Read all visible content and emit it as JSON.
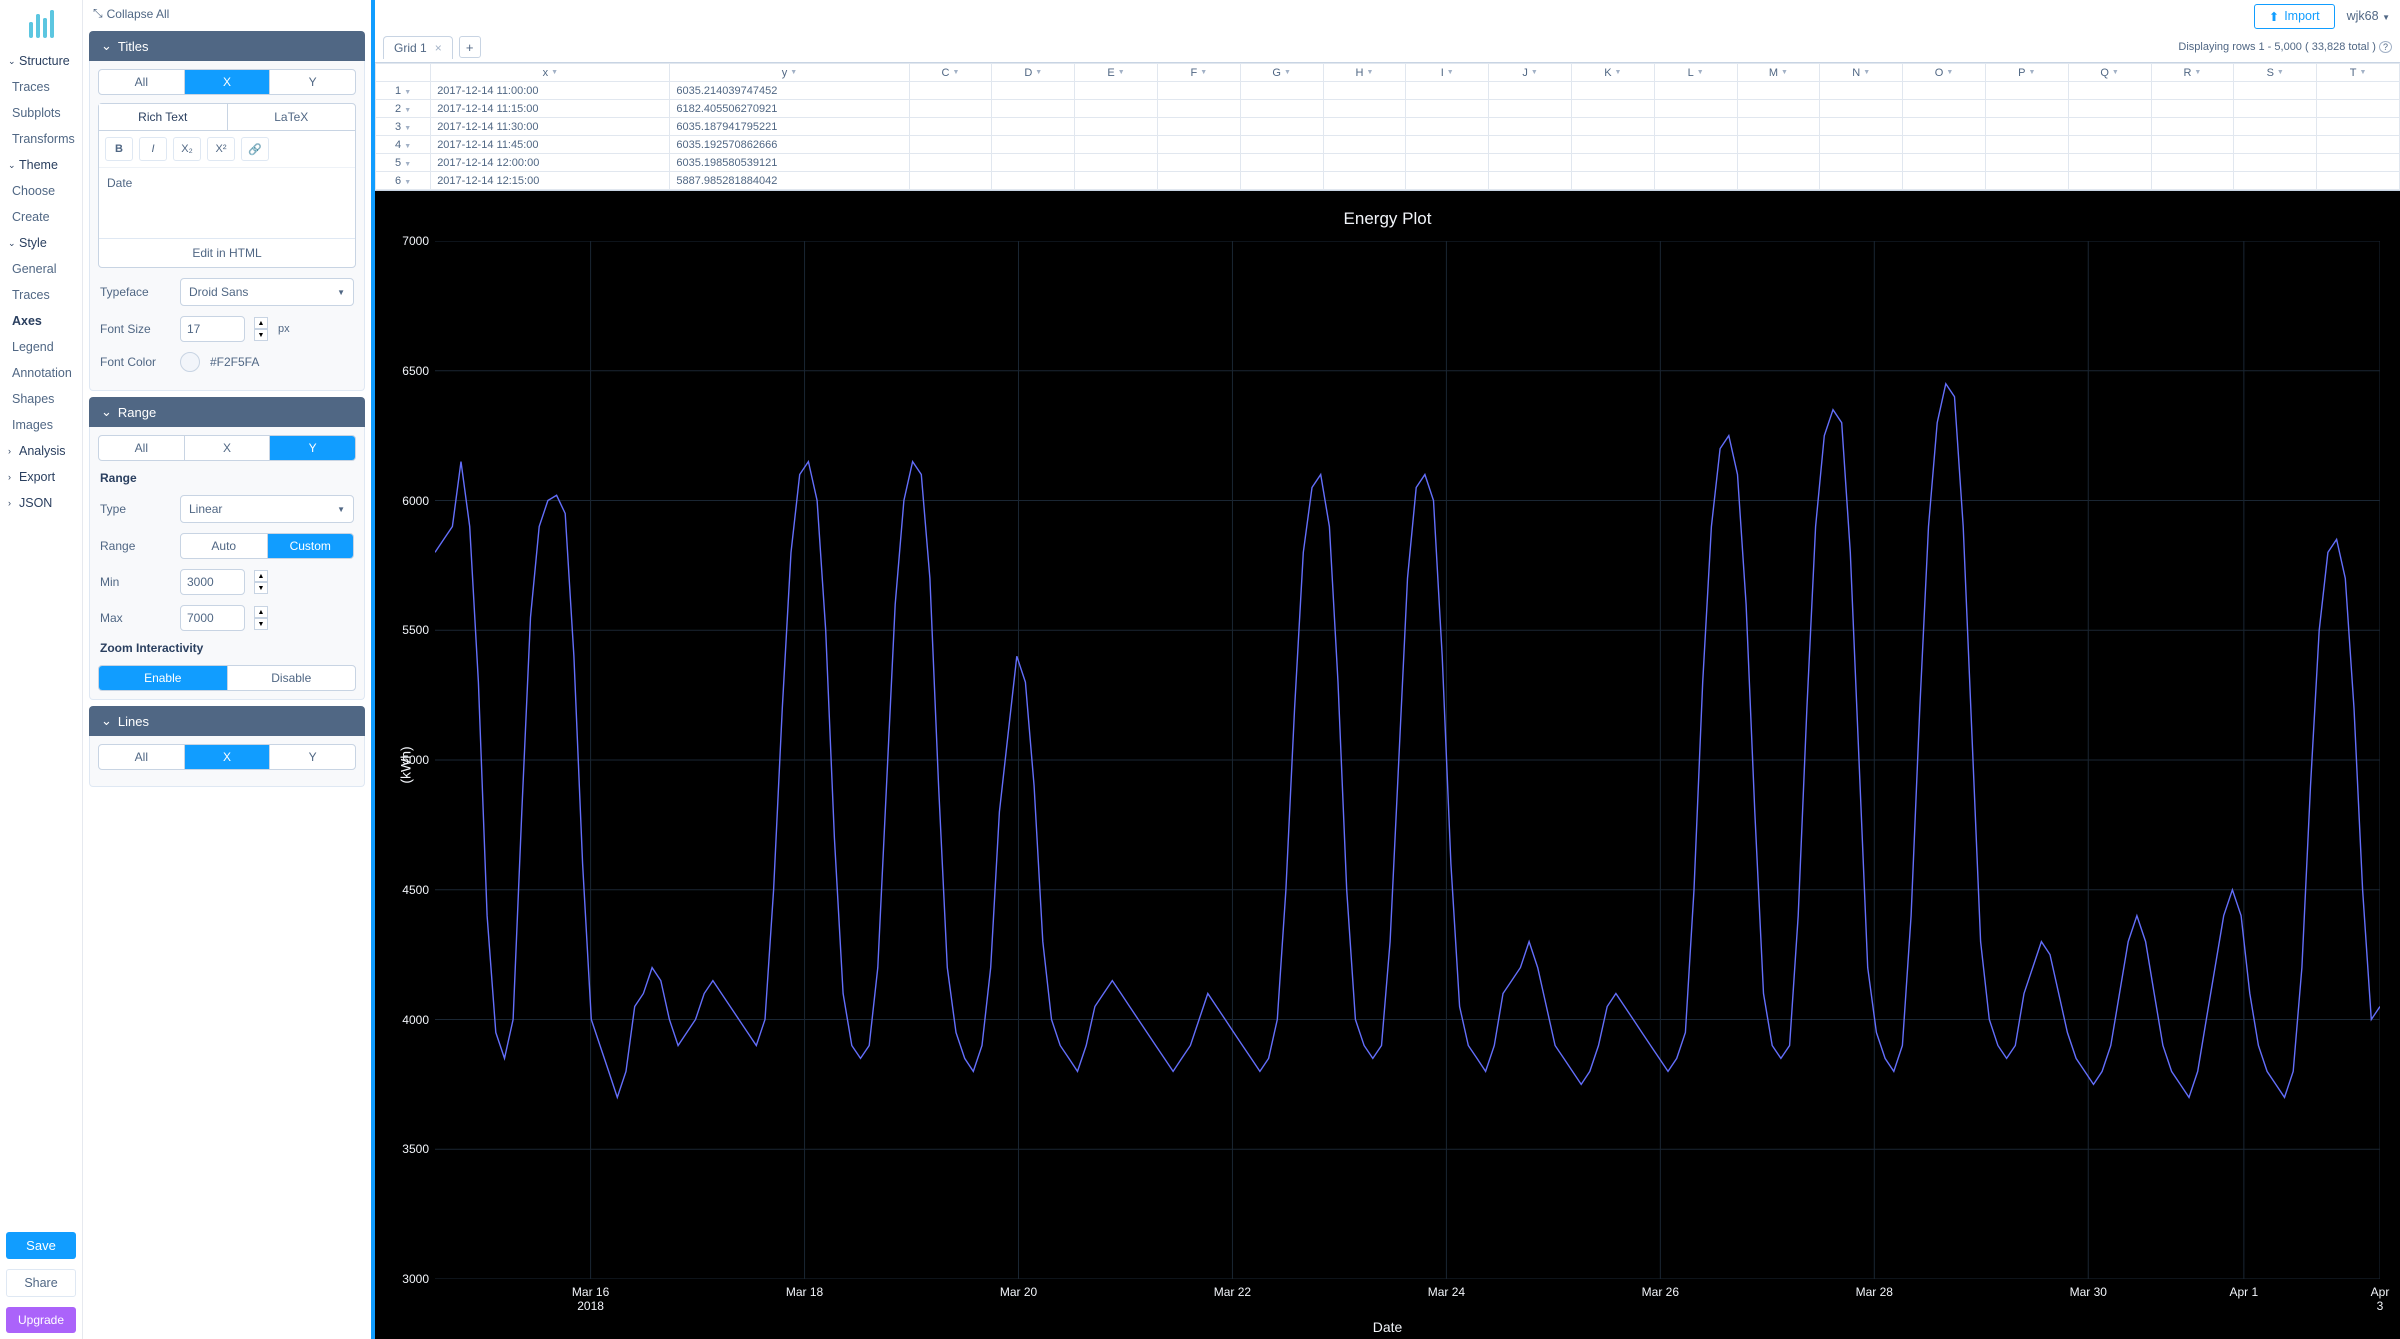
{
  "sidebar": {
    "structure": {
      "head": "Structure",
      "items": [
        "Traces",
        "Subplots",
        "Transforms"
      ]
    },
    "theme": {
      "head": "Theme",
      "items": [
        "Choose",
        "Create"
      ]
    },
    "style": {
      "head": "Style",
      "items": [
        "General",
        "Traces",
        "Axes",
        "Legend",
        "Annotation",
        "Shapes",
        "Images"
      ],
      "active_index": 2
    },
    "analysis": {
      "head": "Analysis"
    },
    "export": {
      "head": "Export"
    },
    "json": {
      "head": "JSON"
    },
    "save": "Save",
    "share": "Share",
    "upgrade": "Upgrade"
  },
  "props": {
    "collapse_all": "Collapse All",
    "titles": {
      "head": "Titles",
      "seg": [
        "All",
        "X",
        "Y"
      ],
      "seg_on": 1,
      "rt_tabs": [
        "Rich Text",
        "LaTeX"
      ],
      "rt_on": 0,
      "toolbar": {
        "bold": "B",
        "italic": "I",
        "sub": "X₂",
        "sup": "X²",
        "link": "🔗"
      },
      "value": "Date",
      "edit_html": "Edit in HTML",
      "typeface_label": "Typeface",
      "typeface_value": "Droid Sans",
      "fontsize_label": "Font Size",
      "fontsize_value": "17",
      "fontsize_unit": "px",
      "fontcolor_label": "Font Color",
      "fontcolor_value": "#F2F5FA"
    },
    "range": {
      "head": "Range",
      "seg": [
        "All",
        "X",
        "Y"
      ],
      "seg_on": 2,
      "range_label": "Range",
      "type_label": "Type",
      "type_value": "Linear",
      "mode_label": "Range",
      "mode_opts": [
        "Auto",
        "Custom"
      ],
      "mode_on": 1,
      "min_label": "Min",
      "min_value": "3000",
      "max_label": "Max",
      "max_value": "7000",
      "zoom_label": "Zoom Interactivity",
      "zoom_opts": [
        "Enable",
        "Disable"
      ],
      "zoom_on": 0
    },
    "lines": {
      "head": "Lines",
      "seg": [
        "All",
        "X",
        "Y"
      ],
      "seg_on": 1
    }
  },
  "topbar": {
    "import": "Import",
    "user": "wjk68"
  },
  "grid": {
    "tab_name": "Grid 1",
    "rows_info": "Displaying rows 1 - 5,000 ( 33,828 total )",
    "columns_letters": [
      "C",
      "D",
      "E",
      "F",
      "G",
      "H",
      "I",
      "J",
      "K",
      "L",
      "M",
      "N",
      "O",
      "P",
      "Q",
      "R",
      "S",
      "T"
    ],
    "xy_headers": [
      "x",
      "y"
    ],
    "rows": [
      [
        "1",
        "2017-12-14 11:00:00",
        "6035.214039747452"
      ],
      [
        "2",
        "2017-12-14 11:15:00",
        "6182.405506270921"
      ],
      [
        "3",
        "2017-12-14 11:30:00",
        "6035.187941795221"
      ],
      [
        "4",
        "2017-12-14 11:45:00",
        "6035.192570862666"
      ],
      [
        "5",
        "2017-12-14 12:00:00",
        "6035.198580539121"
      ],
      [
        "6",
        "2017-12-14 12:15:00",
        "5887.985281884042"
      ]
    ]
  },
  "chart": {
    "title": "Energy Plot",
    "ylabel": "(kWh)",
    "xlabel": "Date",
    "background_color": "#000000",
    "grid_color": "#1a2633",
    "line_color": "#636efa",
    "text_color": "#f2f5fa",
    "ylim": [
      3000,
      7000
    ],
    "yticks": [
      3000,
      3500,
      4000,
      4500,
      5000,
      5500,
      6000,
      6500,
      7000
    ],
    "xticks": [
      {
        "pos": 0.08,
        "label": "Mar 16",
        "sub": "2018"
      },
      {
        "pos": 0.19,
        "label": "Mar 18"
      },
      {
        "pos": 0.3,
        "label": "Mar 20"
      },
      {
        "pos": 0.41,
        "label": "Mar 22"
      },
      {
        "pos": 0.52,
        "label": "Mar 24"
      },
      {
        "pos": 0.63,
        "label": "Mar 26"
      },
      {
        "pos": 0.74,
        "label": "Mar 28"
      },
      {
        "pos": 0.85,
        "label": "Mar 30"
      },
      {
        "pos": 0.93,
        "label": "Apr 1"
      },
      {
        "pos": 1.0,
        "label": "Apr 3"
      }
    ],
    "series": [
      5800,
      5850,
      5900,
      6150,
      5900,
      5300,
      4400,
      3950,
      3850,
      4000,
      4800,
      5550,
      5900,
      6000,
      6020,
      5950,
      5400,
      4600,
      4000,
      3900,
      3800,
      3700,
      3800,
      4050,
      4100,
      4200,
      4150,
      4000,
      3900,
      3950,
      4000,
      4100,
      4150,
      4100,
      4050,
      4000,
      3950,
      3900,
      4000,
      4500,
      5200,
      5800,
      6100,
      6150,
      6000,
      5500,
      4700,
      4100,
      3900,
      3850,
      3900,
      4200,
      4900,
      5600,
      6000,
      6150,
      6100,
      5700,
      4900,
      4200,
      3950,
      3850,
      3800,
      3900,
      4200,
      4800,
      5100,
      5400,
      5300,
      4900,
      4300,
      4000,
      3900,
      3850,
      3800,
      3900,
      4050,
      4100,
      4150,
      4100,
      4050,
      4000,
      3950,
      3900,
      3850,
      3800,
      3850,
      3900,
      4000,
      4100,
      4050,
      4000,
      3950,
      3900,
      3850,
      3800,
      3850,
      4000,
      4500,
      5200,
      5800,
      6050,
      6100,
      5900,
      5300,
      4500,
      4000,
      3900,
      3850,
      3900,
      4300,
      5000,
      5700,
      6050,
      6100,
      6000,
      5400,
      4600,
      4050,
      3900,
      3850,
      3800,
      3900,
      4100,
      4150,
      4200,
      4300,
      4200,
      4050,
      3900,
      3850,
      3800,
      3750,
      3800,
      3900,
      4050,
      4100,
      4050,
      4000,
      3950,
      3900,
      3850,
      3800,
      3850,
      3950,
      4500,
      5300,
      5900,
      6200,
      6250,
      6100,
      5600,
      4800,
      4100,
      3900,
      3850,
      3900,
      4400,
      5200,
      5900,
      6250,
      6350,
      6300,
      5800,
      5000,
      4200,
      3950,
      3850,
      3800,
      3900,
      4400,
      5200,
      5900,
      6300,
      6450,
      6400,
      5900,
      5100,
      4300,
      4000,
      3900,
      3850,
      3900,
      4100,
      4200,
      4300,
      4250,
      4100,
      3950,
      3850,
      3800,
      3750,
      3800,
      3900,
      4100,
      4300,
      4400,
      4300,
      4100,
      3900,
      3800,
      3750,
      3700,
      3800,
      4000,
      4200,
      4400,
      4500,
      4400,
      4100,
      3900,
      3800,
      3750,
      3700,
      3800,
      4200,
      4900,
      5500,
      5800,
      5850,
      5700,
      5200,
      4500,
      4000,
      4050
    ]
  }
}
